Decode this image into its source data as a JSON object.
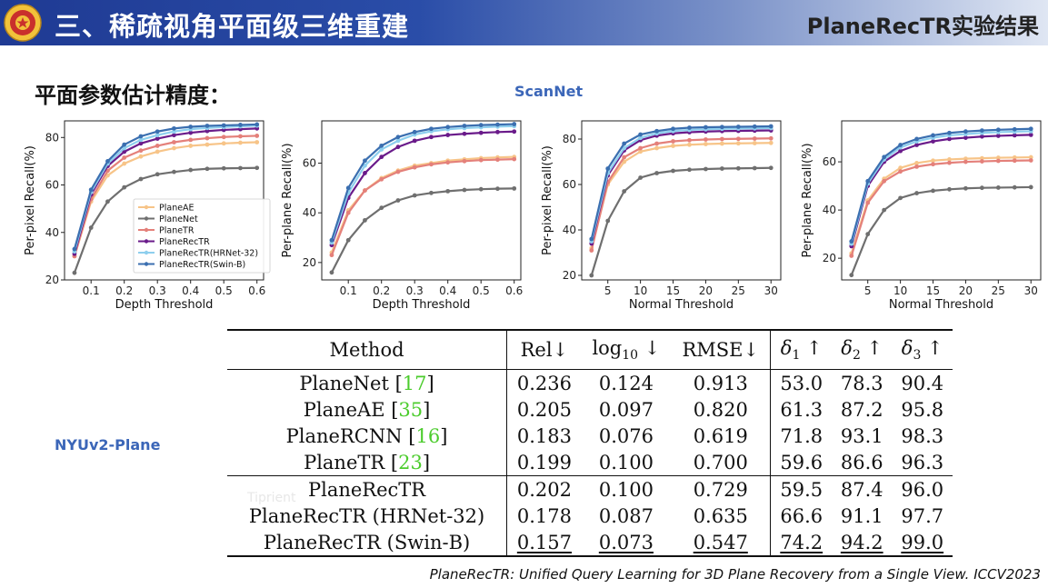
{
  "header": {
    "section_title": "三、稀疏视角平面级三维重建",
    "paper_tag": "PlaneRecTR实验结果"
  },
  "subtitle": "平面参数估计精度：",
  "scannet_label": "ScanNet",
  "nyu_label": "NYUv2-Plane",
  "watermark": "Tiprient",
  "citation": "PlaneRecTR: Unified Query Learning for 3D Plane Recovery from a Single View. ICCV2023",
  "colors": {
    "header_blue": "#1f3a93",
    "label_blue": "#3b66b8",
    "ref_green": "#4ccc2d",
    "PlaneAE": "#f7c488",
    "PlaneNet": "#6f6f6f",
    "PlaneTR": "#e4807a",
    "PlaneRecTR": "#6a1b8a",
    "PlaneRecTR(HRNet-32)": "#8ecfee",
    "PlaneRecTR(Swin-B)": "#3b6fb0"
  },
  "chart_data": [
    {
      "type": "line",
      "xlabel": "Depth Threshold",
      "ylabel": "Per-pixel Recall(%)",
      "x": [
        0.05,
        0.1,
        0.15,
        0.2,
        0.25,
        0.3,
        0.35,
        0.4,
        0.45,
        0.5,
        0.55,
        0.6
      ],
      "xticks": [
        0.1,
        0.2,
        0.3,
        0.4,
        0.5,
        0.6
      ],
      "xlim": [
        0.02,
        0.62
      ],
      "yticks": [
        20,
        40,
        60,
        80
      ],
      "ylim": [
        20,
        87
      ],
      "legend": "left-center",
      "series": [
        {
          "name": "PlaneAE",
          "values": [
            30,
            53,
            64,
            69,
            72,
            74,
            75.5,
            76.5,
            77,
            77.5,
            77.8,
            78
          ]
        },
        {
          "name": "PlaneNet",
          "values": [
            23,
            42,
            53,
            59,
            62.5,
            64.5,
            65.5,
            66.3,
            66.8,
            67,
            67.1,
            67.2
          ]
        },
        {
          "name": "PlaneTR",
          "values": [
            30,
            54,
            66,
            71.5,
            74.5,
            76.5,
            78,
            79,
            79.7,
            80.2,
            80.5,
            80.7
          ]
        },
        {
          "name": "PlaneRecTR",
          "values": [
            31,
            56,
            68,
            74,
            77.5,
            79.5,
            81,
            82,
            82.7,
            83.2,
            83.5,
            83.8
          ]
        },
        {
          "name": "PlaneRecTR(HRNet-32)",
          "values": [
            32,
            57,
            69,
            75.5,
            79,
            81,
            82.5,
            83.5,
            84,
            84.4,
            84.7,
            85
          ]
        },
        {
          "name": "PlaneRecTR(Swin-B)",
          "values": [
            33,
            58,
            70,
            77,
            80.5,
            82.5,
            83.8,
            84.5,
            84.9,
            85.1,
            85.3,
            85.5
          ]
        }
      ]
    },
    {
      "type": "line",
      "xlabel": "Depth Threshold",
      "ylabel": "Per-plane Recall(%)",
      "x": [
        0.05,
        0.1,
        0.15,
        0.2,
        0.25,
        0.3,
        0.35,
        0.4,
        0.45,
        0.5,
        0.55,
        0.6
      ],
      "xticks": [
        0.1,
        0.2,
        0.3,
        0.4,
        0.5,
        0.6
      ],
      "xlim": [
        0.02,
        0.62
      ],
      "yticks": [
        20,
        40,
        60
      ],
      "ylim": [
        13,
        77
      ],
      "series": [
        {
          "name": "PlaneAE",
          "values": [
            24,
            41,
            49,
            54,
            57,
            59,
            60,
            61,
            61.5,
            62,
            62.3,
            62.5
          ]
        },
        {
          "name": "PlaneNet",
          "values": [
            16,
            29,
            37,
            42,
            45,
            47,
            48,
            48.7,
            49.2,
            49.5,
            49.7,
            49.8
          ]
        },
        {
          "name": "PlaneTR",
          "values": [
            23,
            40,
            49,
            53.5,
            56.5,
            58.3,
            59.5,
            60.3,
            60.8,
            61.2,
            61.4,
            61.6
          ]
        },
        {
          "name": "PlaneRecTR",
          "values": [
            27,
            46,
            56,
            62.5,
            66.5,
            69,
            70.5,
            71.3,
            71.8,
            72.2,
            72.5,
            72.7
          ]
        },
        {
          "name": "PlaneRecTR(HRNet-32)",
          "values": [
            28,
            48,
            59,
            65.5,
            69,
            71.5,
            72.8,
            73.6,
            74.1,
            74.4,
            74.7,
            74.9
          ]
        },
        {
          "name": "PlaneRecTR(Swin-B)",
          "values": [
            29,
            50,
            61,
            67,
            70.5,
            72.5,
            73.8,
            74.5,
            75,
            75.3,
            75.5,
            75.7
          ]
        }
      ]
    },
    {
      "type": "line",
      "xlabel": "Normal Threshold",
      "ylabel": "Per-pixel Recall(%)",
      "x": [
        2.5,
        5,
        7.5,
        10,
        12.5,
        15,
        17.5,
        20,
        22.5,
        25,
        27.5,
        30
      ],
      "xticks": [
        5,
        10,
        15,
        20,
        25,
        30
      ],
      "xlim": [
        1,
        31.5
      ],
      "yticks": [
        20,
        40,
        60,
        80
      ],
      "ylim": [
        18,
        88
      ],
      "series": [
        {
          "name": "PlaneAE",
          "values": [
            32,
            60,
            70,
            74.5,
            76,
            77,
            77.5,
            77.8,
            78,
            78.1,
            78.2,
            78.3
          ]
        },
        {
          "name": "PlaneNet",
          "values": [
            20,
            44,
            57,
            63,
            65,
            66,
            66.5,
            66.8,
            67,
            67.1,
            67.2,
            67.3
          ]
        },
        {
          "name": "PlaneTR",
          "values": [
            31,
            61,
            72,
            76,
            78,
            79,
            79.5,
            79.8,
            80,
            80.1,
            80.2,
            80.3
          ]
        },
        {
          "name": "PlaneRecTR",
          "values": [
            34,
            64,
            75,
            79.5,
            81.5,
            82.5,
            83,
            83.3,
            83.5,
            83.6,
            83.7,
            83.8
          ]
        },
        {
          "name": "PlaneRecTR(HRNet-32)",
          "values": [
            35,
            65,
            76,
            80.5,
            82.5,
            83.5,
            84,
            84.3,
            84.5,
            84.6,
            84.7,
            84.8
          ]
        },
        {
          "name": "PlaneRecTR(Swin-B)",
          "values": [
            36,
            67,
            78,
            82,
            83.5,
            84.5,
            85,
            85.2,
            85.3,
            85.4,
            85.5,
            85.6
          ]
        }
      ]
    },
    {
      "type": "line",
      "xlabel": "Normal Threshold",
      "ylabel": "Per-plane Recall(%)",
      "x": [
        2.5,
        5,
        7.5,
        10,
        12.5,
        15,
        17.5,
        20,
        22.5,
        25,
        27.5,
        30
      ],
      "xticks": [
        5,
        10,
        15,
        20,
        25,
        30
      ],
      "xlim": [
        1,
        31.5
      ],
      "yticks": [
        20,
        40,
        60
      ],
      "ylim": [
        11,
        77
      ],
      "series": [
        {
          "name": "PlaneAE",
          "values": [
            22,
            44,
            53,
            57.5,
            59.5,
            60.5,
            61,
            61.3,
            61.5,
            61.7,
            61.8,
            61.9
          ]
        },
        {
          "name": "PlaneNet",
          "values": [
            13,
            30,
            40,
            45,
            47,
            48,
            48.6,
            49,
            49.2,
            49.3,
            49.4,
            49.5
          ]
        },
        {
          "name": "PlaneTR",
          "values": [
            21,
            43,
            52,
            56,
            58,
            59,
            59.6,
            60,
            60.2,
            60.4,
            60.5,
            60.6
          ]
        },
        {
          "name": "PlaneRecTR",
          "values": [
            25,
            50,
            60,
            64.5,
            67,
            68.5,
            69.5,
            70,
            70.5,
            70.8,
            71,
            71.2
          ]
        },
        {
          "name": "PlaneRecTR(HRNet-32)",
          "values": [
            26,
            51,
            61,
            66,
            68.5,
            70,
            71,
            71.5,
            72,
            72.3,
            72.5,
            72.7
          ]
        },
        {
          "name": "PlaneRecTR(Swin-B)",
          "values": [
            27,
            52,
            62,
            67,
            69.5,
            71,
            72,
            72.6,
            73,
            73.3,
            73.5,
            73.7
          ]
        }
      ]
    }
  ],
  "table": {
    "header": {
      "method": "Method",
      "rel": "Rel↓",
      "log10_base": "log",
      "log10_sub": "10",
      "log10_arrow": " ↓",
      "rmse": "RMSE↓",
      "d1_base": "δ",
      "d1_sub": "1",
      "d1_arrow": " ↑",
      "d2_base": "δ",
      "d2_sub": "2",
      "d2_arrow": " ↑",
      "d3_base": "δ",
      "d3_sub": "3",
      "d3_arrow": " ↑"
    },
    "rows": [
      {
        "method": "PlaneNet [",
        "ref": "17",
        "close": "]",
        "rel": "0.236",
        "log10": "0.124",
        "rmse": "0.913",
        "d1": "53.0",
        "d2": "78.3",
        "d3": "90.4"
      },
      {
        "method": "PlaneAE [",
        "ref": "35",
        "close": "]",
        "rel": "0.205",
        "log10": "0.097",
        "rmse": "0.820",
        "d1": "61.3",
        "d2": "87.2",
        "d3": "95.8"
      },
      {
        "method": "PlaneRCNN [",
        "ref": "16",
        "close": "]",
        "rel": "0.183",
        "log10": "0.076",
        "rmse": "0.619",
        "d1": "71.8",
        "d2": "93.1",
        "d3": "98.3"
      },
      {
        "method": "PlaneTR [",
        "ref": "23",
        "close": "]",
        "rel": "0.199",
        "log10": "0.100",
        "rmse": "0.700",
        "d1": "59.6",
        "d2": "86.6",
        "d3": "96.3"
      },
      {
        "method": "PlaneRecTR",
        "rel": "0.202",
        "log10": "0.100",
        "rmse": "0.729",
        "d1": "59.5",
        "d2": "87.4",
        "d3": "96.0"
      },
      {
        "method": "PlaneRecTR (HRNet-32)",
        "rel": "0.178",
        "log10": "0.087",
        "rmse": "0.635",
        "d1": "66.6",
        "d2": "91.1",
        "d3": "97.7"
      },
      {
        "method": "PlaneRecTR (Swin-B)",
        "rel": "0.157",
        "log10": "0.073",
        "rmse": "0.547",
        "d1": "74.2",
        "d2": "94.2",
        "d3": "99.0"
      }
    ]
  }
}
